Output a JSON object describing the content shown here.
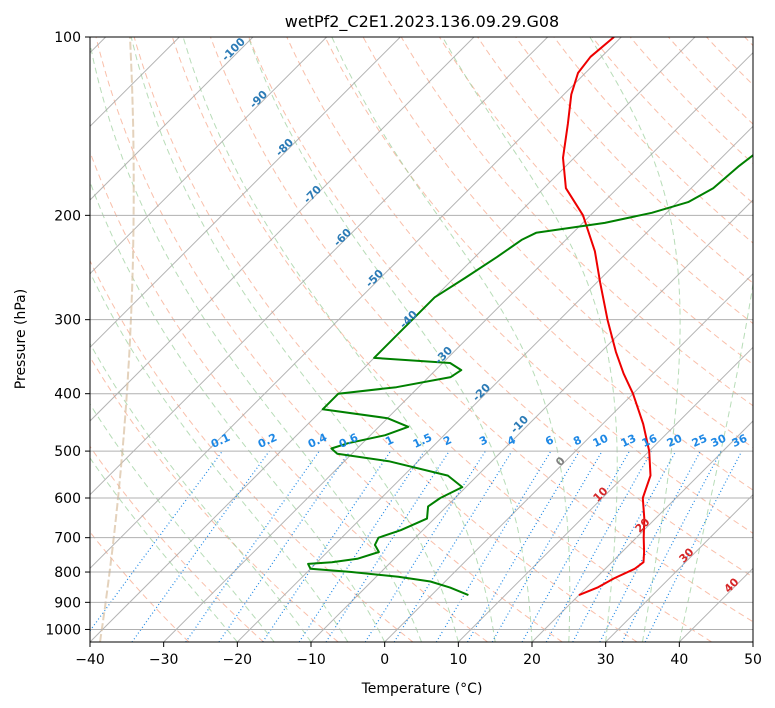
{
  "chart_data": {
    "type": "line",
    "subtype": "skew-t log-p diagram",
    "title": "wetPf2_C2E1.2023.136.09.29.G08",
    "xlabel": "Temperature (°C)",
    "ylabel": "Pressure (hPa)",
    "xlim": [
      -40,
      50
    ],
    "ylim": [
      1050,
      100
    ],
    "x_ticks": [
      -40,
      -30,
      -20,
      -10,
      0,
      10,
      20,
      30,
      40,
      50
    ],
    "x_tick_labels": [
      "−40",
      "−30",
      "−20",
      "−10",
      "0",
      "10",
      "20",
      "30",
      "40",
      "50"
    ],
    "y_ticks": [
      1000,
      900,
      800,
      700,
      600,
      500,
      400,
      300,
      200,
      100
    ],
    "y_tick_labels": [
      "1000",
      "900",
      "800",
      "700",
      "600",
      "500",
      "400",
      "300",
      "200",
      "100"
    ],
    "colors": {
      "temperature": "#ee0000",
      "dewpoint": "#008000",
      "grid": "#b0b0b0",
      "isotherm": "#a8a8a8",
      "dry_adiabat": "#f7a98d",
      "moist_adiabat": "#9fd09f",
      "mixing_ratio": "#1e88e5",
      "freezing": "#d9bfa0"
    },
    "isotherm_labels": [
      {
        "value": "-100",
        "color": "#2c7bb6"
      },
      {
        "value": "-90",
        "color": "#2c7bb6"
      },
      {
        "value": "-80",
        "color": "#2c7bb6"
      },
      {
        "value": "-70",
        "color": "#2c7bb6"
      },
      {
        "value": "-60",
        "color": "#2c7bb6"
      },
      {
        "value": "-50",
        "color": "#2c7bb6"
      },
      {
        "value": "-40",
        "color": "#2c7bb6"
      },
      {
        "value": "-30",
        "color": "#2c7bb6"
      },
      {
        "value": "-20",
        "color": "#2c7bb6"
      },
      {
        "value": "-10",
        "color": "#2c7bb6"
      },
      {
        "value": "0",
        "color": "#808080"
      },
      {
        "value": "10",
        "color": "#d62728"
      },
      {
        "value": "20",
        "color": "#d62728"
      },
      {
        "value": "30",
        "color": "#d62728"
      },
      {
        "value": "40",
        "color": "#d62728"
      }
    ],
    "mixing_ratio_labels": [
      "0.1",
      "0.2",
      "0.4",
      "0.6",
      "1",
      "1.5",
      "2",
      "3",
      "4",
      "6",
      "8",
      "10",
      "13",
      "16",
      "20",
      "25",
      "30",
      "36"
    ],
    "series": [
      {
        "name": "Temperature",
        "points": [
          {
            "p": 875,
            "t": 20.0
          },
          {
            "p": 850,
            "t": 21.5
          },
          {
            "p": 820,
            "t": 22.5
          },
          {
            "p": 790,
            "t": 24.0
          },
          {
            "p": 770,
            "t": 24.3
          },
          {
            "p": 740,
            "t": 23.0
          },
          {
            "p": 700,
            "t": 21.0
          },
          {
            "p": 650,
            "t": 18.5
          },
          {
            "p": 600,
            "t": 15.5
          },
          {
            "p": 550,
            "t": 13.5
          },
          {
            "p": 500,
            "t": 10.0
          },
          {
            "p": 450,
            "t": 5.5
          },
          {
            "p": 400,
            "t": 0.0
          },
          {
            "p": 370,
            "t": -4.0
          },
          {
            "p": 340,
            "t": -8.0
          },
          {
            "p": 300,
            "t": -13.5
          },
          {
            "p": 260,
            "t": -19.5
          },
          {
            "p": 230,
            "t": -24.5
          },
          {
            "p": 200,
            "t": -31.0
          },
          {
            "p": 180,
            "t": -37.0
          },
          {
            "p": 160,
            "t": -41.5
          },
          {
            "p": 140,
            "t": -45.5
          },
          {
            "p": 125,
            "t": -49.0
          },
          {
            "p": 115,
            "t": -51.0
          },
          {
            "p": 108,
            "t": -51.5
          },
          {
            "p": 100,
            "t": -51.0
          }
        ]
      },
      {
        "name": "Dewpoint",
        "points": [
          {
            "p": 875,
            "t": 5.0
          },
          {
            "p": 850,
            "t": 1.5
          },
          {
            "p": 830,
            "t": -2.0
          },
          {
            "p": 815,
            "t": -7.0
          },
          {
            "p": 800,
            "t": -14.0
          },
          {
            "p": 790,
            "t": -20.0
          },
          {
            "p": 775,
            "t": -21.0
          },
          {
            "p": 770,
            "t": -18.0
          },
          {
            "p": 760,
            "t": -15.0
          },
          {
            "p": 740,
            "t": -13.0
          },
          {
            "p": 720,
            "t": -14.5
          },
          {
            "p": 700,
            "t": -15.0
          },
          {
            "p": 680,
            "t": -13.0
          },
          {
            "p": 650,
            "t": -11.0
          },
          {
            "p": 620,
            "t": -12.5
          },
          {
            "p": 600,
            "t": -12.0
          },
          {
            "p": 575,
            "t": -10.5
          },
          {
            "p": 550,
            "t": -14.0
          },
          {
            "p": 520,
            "t": -24.0
          },
          {
            "p": 505,
            "t": -32.0
          },
          {
            "p": 495,
            "t": -33.5
          },
          {
            "p": 485,
            "t": -32.0
          },
          {
            "p": 470,
            "t": -28.0
          },
          {
            "p": 455,
            "t": -26.0
          },
          {
            "p": 440,
            "t": -30.0
          },
          {
            "p": 425,
            "t": -40.0
          },
          {
            "p": 400,
            "t": -40.0
          },
          {
            "p": 390,
            "t": -33.0
          },
          {
            "p": 375,
            "t": -27.0
          },
          {
            "p": 365,
            "t": -26.5
          },
          {
            "p": 355,
            "t": -29.0
          },
          {
            "p": 348,
            "t": -40.0
          },
          {
            "p": 275,
            "t": -40.0
          },
          {
            "p": 255,
            "t": -38.5
          },
          {
            "p": 235,
            "t": -37.0
          },
          {
            "p": 220,
            "t": -36.0
          },
          {
            "p": 214,
            "t": -35.0
          },
          {
            "p": 206,
            "t": -27.0
          },
          {
            "p": 198,
            "t": -22.0
          },
          {
            "p": 190,
            "t": -18.5
          },
          {
            "p": 180,
            "t": -17.0
          },
          {
            "p": 165,
            "t": -16.5
          },
          {
            "p": 150,
            "t": -15.5
          },
          {
            "p": 138,
            "t": -15.5
          },
          {
            "p": 130,
            "t": -14.5
          },
          {
            "p": 120,
            "t": -12.0
          },
          {
            "p": 110,
            "t": -9.5
          },
          {
            "p": 100,
            "t": -8.0
          }
        ]
      }
    ]
  }
}
